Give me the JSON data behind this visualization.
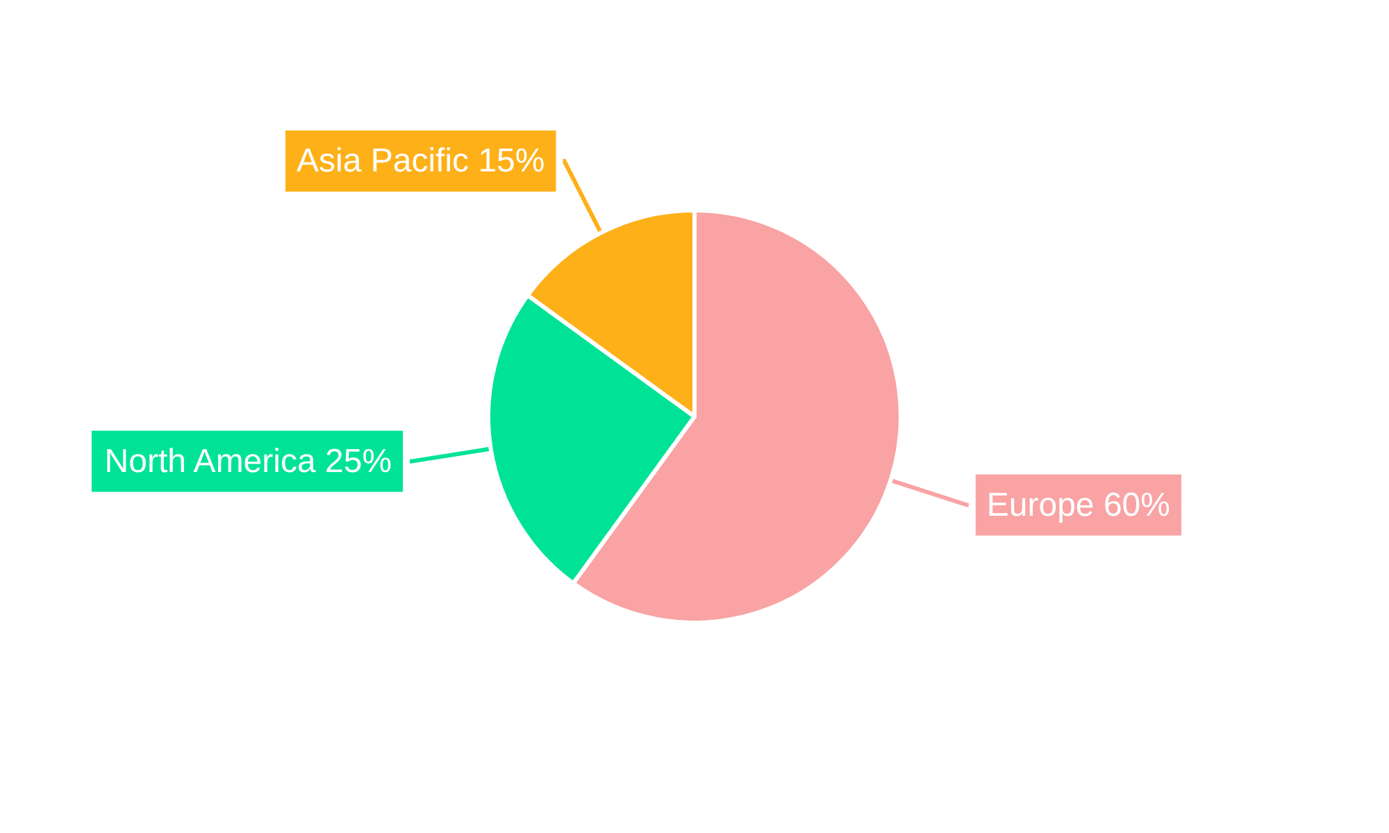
{
  "chart_data": {
    "type": "pie",
    "categories": [
      "Europe",
      "North America",
      "Asia Pacific"
    ],
    "values": [
      60,
      25,
      15
    ],
    "colors": [
      "#f9a3a4",
      "#00e396",
      "#feb019"
    ],
    "value_labels": [
      "60%",
      "25%",
      "15%"
    ]
  }
}
